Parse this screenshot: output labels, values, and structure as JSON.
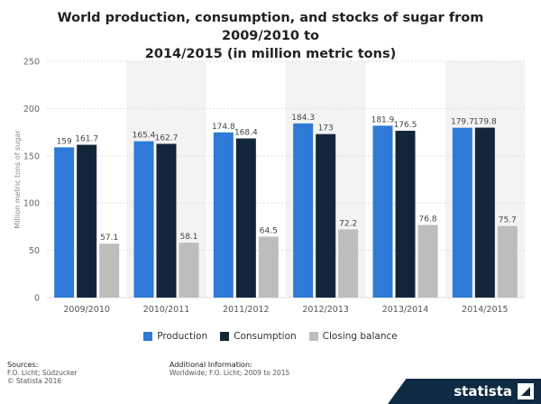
{
  "chart_data": {
    "type": "bar",
    "title_line1": "World production, consumption, and stocks of sugar from 2009/2010 to",
    "title_line2": "2014/2015 (in million metric tons)",
    "xlabel": "",
    "ylabel": "Million metric tons of sugar",
    "ylim": [
      0,
      250
    ],
    "yticks": [
      0,
      50,
      100,
      150,
      200,
      250
    ],
    "categories": [
      "2009/2010",
      "2010/2011",
      "2011/2012",
      "2012/2013",
      "2013/2014",
      "2014/2015"
    ],
    "series": [
      {
        "name": "Production",
        "color": "#2f7ad6",
        "values": [
          159,
          165.4,
          174.8,
          184.3,
          181.9,
          179.7
        ],
        "labels": [
          "159",
          "165.4",
          "174.8",
          "184.3",
          "181.9",
          "179.7"
        ]
      },
      {
        "name": "Consumption",
        "color": "#12263a",
        "values": [
          161.7,
          162.7,
          168.4,
          173,
          176.5,
          179.8
        ],
        "labels": [
          "161.7",
          "162.7",
          "168.4",
          "173",
          "176.5",
          "179.8"
        ]
      },
      {
        "name": "Closing balance",
        "color": "#bdbdbd",
        "values": [
          57.1,
          58.1,
          64.5,
          72.2,
          76.8,
          75.7
        ],
        "labels": [
          "57.1",
          "58.1",
          "64.5",
          "72.2",
          "76.8",
          "75.7"
        ]
      }
    ],
    "grid": true,
    "legend_position": "bottom"
  },
  "footer": {
    "sources_heading": "Sources:",
    "sources_line1": "F.O. Licht; Südzucker",
    "sources_line2": "© Statista 2016",
    "additional_heading": "Additional Information:",
    "additional_line1": "Worldwide; F.O. Licht; 2009 to 2015"
  },
  "brand": {
    "name": "statista",
    "color": "#0f2a43"
  }
}
